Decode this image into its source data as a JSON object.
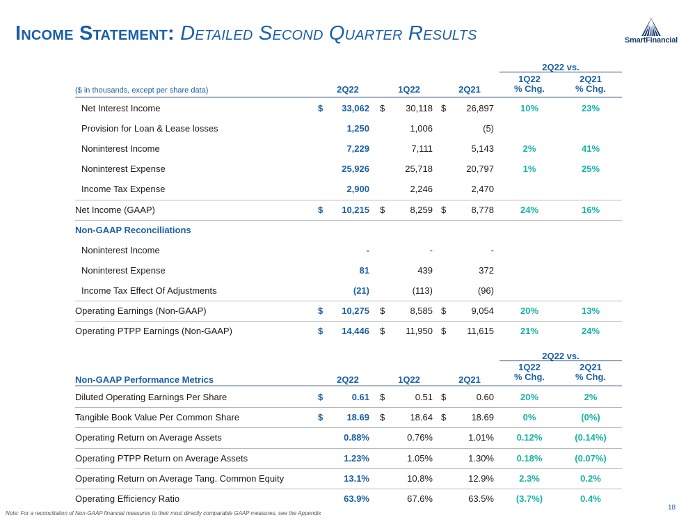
{
  "title": {
    "main": "Income Statement:",
    "sub": "Detailed Second Quarter Results"
  },
  "logo": {
    "name": "SmartFinancial"
  },
  "table1": {
    "caption": "($ in thousands, except per share data)",
    "vs_label": "2Q22 vs.",
    "columns": [
      "2Q22",
      "1Q22",
      "2Q21"
    ],
    "chg1": "1Q22\n% Chg.",
    "chg2": "2Q21\n% Chg.",
    "rows": [
      {
        "label": "Net Interest Income",
        "d": "$",
        "c1": "33,062",
        "c2": "30,118",
        "c3": "26,897",
        "p1": "10%",
        "p2": "23%"
      },
      {
        "label": "Provision for Loan & Lease losses",
        "d": "",
        "c1": "1,250",
        "c2": "1,006",
        "c3": "(5)",
        "p1": "",
        "p2": ""
      },
      {
        "label": "Noninterest Income",
        "d": "",
        "c1": "7,229",
        "c2": "7,111",
        "c3": "5,143",
        "p1": "2%",
        "p2": "41%"
      },
      {
        "label": "Noninterest Expense",
        "d": "",
        "c1": "25,926",
        "c2": "25,718",
        "c3": "20,797",
        "p1": "1%",
        "p2": "25%"
      },
      {
        "label": "Income Tax Expense",
        "d": "",
        "c1": "2,900",
        "c2": "2,246",
        "c3": "2,470",
        "p1": "",
        "p2": ""
      },
      {
        "label": "Net Income (GAAP)",
        "d": "$",
        "c1": "10,215",
        "c2": "8,259",
        "c3": "8,778",
        "p1": "24%",
        "p2": "16%"
      },
      {
        "label": "Non-GAAP Reconciliations",
        "d": "",
        "c1": "",
        "c2": "",
        "c3": "",
        "p1": "",
        "p2": ""
      },
      {
        "label": "Noninterest Income",
        "d": "",
        "c1": "-",
        "c2": "-",
        "c3": "-",
        "p1": "",
        "p2": ""
      },
      {
        "label": "Noninterest Expense",
        "d": "",
        "c1": "81",
        "c2": "439",
        "c3": "372",
        "p1": "",
        "p2": ""
      },
      {
        "label": "Income Tax Effect Of Adjustments",
        "d": "",
        "c1": "(21)",
        "c2": "(113)",
        "c3": "(96)",
        "p1": "",
        "p2": ""
      },
      {
        "label": "Operating Earnings (Non-GAAP)",
        "d": "$",
        "c1": "10,275",
        "c2": "8,585",
        "c3": "9,054",
        "p1": "20%",
        "p2": "13%"
      },
      {
        "label": "Operating PTPP Earnings (Non-GAAP)",
        "d": "$",
        "c1": "14,446",
        "c2": "11,950",
        "c3": "11,615",
        "p1": "21%",
        "p2": "24%"
      }
    ]
  },
  "table2": {
    "caption": "Non-GAAP Performance Metrics",
    "vs_label": "2Q22 vs.",
    "columns": [
      "2Q22",
      "1Q22",
      "2Q21"
    ],
    "chg1": "1Q22\n% Chg.",
    "chg2": "2Q21\n% Chg.",
    "rows": [
      {
        "label": "Diluted Operating Earnings Per Share",
        "d": "$",
        "c1": "0.61",
        "c2": "0.51",
        "c3": "0.60",
        "p1": "20%",
        "p2": "2%"
      },
      {
        "label": "Tangible Book Value Per Common Share",
        "d": "$",
        "c1": "18.69",
        "c2": "18.64",
        "c3": "18.69",
        "p1": "0%",
        "p2": "(0%)"
      },
      {
        "label": "Operating Return on Average Assets",
        "d": "",
        "c1": "0.88%",
        "c2": "0.76%",
        "c3": "1.01%",
        "p1": "0.12%",
        "p2": "(0.14%)"
      },
      {
        "label": "Operating PTPP Return on Average Assets",
        "d": "",
        "c1": "1.23%",
        "c2": "1.05%",
        "c3": "1.30%",
        "p1": "0.18%",
        "p2": "(0.07%)"
      },
      {
        "label": "Operating Return on Average Tang. Common Equity",
        "d": "",
        "c1": "13.1%",
        "c2": "10.8%",
        "c3": "12.9%",
        "p1": "2.3%",
        "p2": "0.2%"
      },
      {
        "label": "Operating Efficiency Ratio",
        "d": "",
        "c1": "63.9%",
        "c2": "67.6%",
        "c3": "63.5%",
        "p1": "(3.7%)",
        "p2": "0.4%"
      }
    ]
  },
  "footer": {
    "note": "Note: For a reconciliation of Non-GAAP financial measures to their most directly comparable GAAP measures, see the Appendix",
    "page": "18"
  }
}
